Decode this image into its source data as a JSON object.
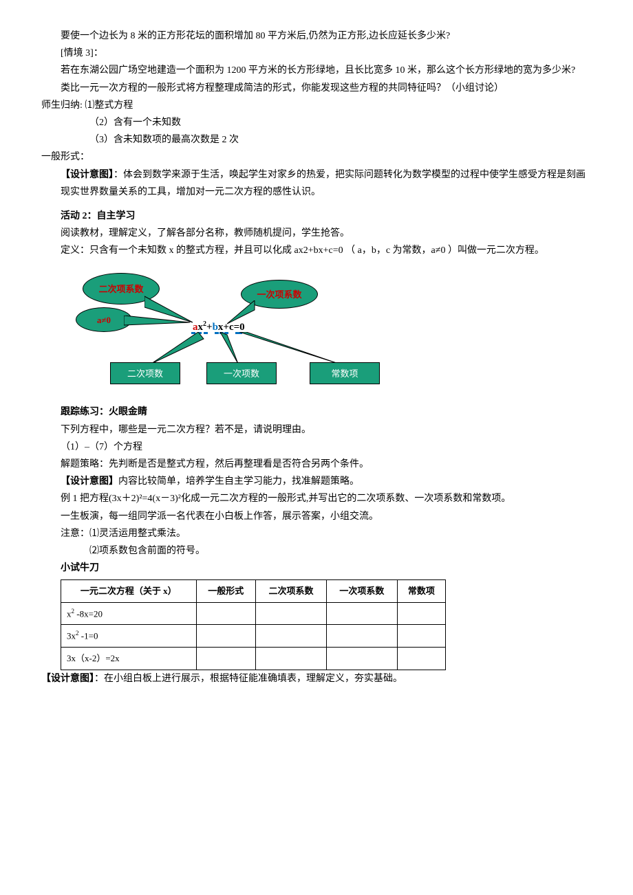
{
  "p1": "要使一个边长为 8 米的正方形花坛的面积增加 80 平方米后,仍然为正方形,边长应延长多少米?",
  "p2": "[情境 3]：",
  "p3": "若在东湖公园广场空地建造一个面积为 1200 平方米的长方形绿地，且长比宽多 10 米，那么这个长方形绿地的宽为多少米?",
  "p4": "类比一元一次方程的一般形式将方程整理成简洁的形式，你能发现这些方程的共同特征吗？（小组讨论）",
  "p5": "师生归纳: ⑴整式方程",
  "p6": "（2）含有一个未知数",
  "p7": "（3）含未知数项的最高次数是 2 次",
  "p8": "一般形式：",
  "design1_label": "【设计意图】",
  "design1_text": "：体会到数学来源于生活，唤起学生对家乡的热爱，把实际问题转化为数学模型的过程中使学生感受方程是刻画现实世界数量关系的工具，增加对一元二次方程的感性认识。",
  "act2_title": "活动 2：自主学习",
  "act2_p1": "阅读教材，理解定义，了解各部分名称，教师随机提问，学生抢答。",
  "act2_p2": "定义：只含有一个未知数 x 的整式方程，并且可以化成 ax2+bx+c=0 （ a，b，c 为常数，a≠0  ）叫做一元二次方程。",
  "diagram": {
    "bubble1": "二次项系数",
    "bubble2": "一次项系数",
    "bubble3": "a≠0",
    "box1": "二次项数",
    "box2": "一次项数",
    "box3": "常数项",
    "formula_html": "<span class='a'>a</span>x<sup>2</sup>+<span class='b'>b</span>x+c=0",
    "colors": {
      "shape_fill": "#1a9e7a",
      "bubble_text": "#c00",
      "box_text": "#ffffff",
      "dash": "#0070c0"
    }
  },
  "follow_title": "跟踪练习：火眼金睛",
  "follow_p1": "下列方程中，哪些是一元二次方程？若不是，请说明理由。",
  "follow_p2": "（1）–（7）个方程",
  "follow_p3": "解题策略：先判断是否是整式方程，然后再整理看是否符合另两个条件。",
  "design2_label": "【设计意图】",
  "design2_text": "内容比较简单，培养学生自主学习能力，找准解题策略。",
  "ex1": "例 1 把方程(3x＋2)²=4(x－3)²化成一元二次方程的一般形式,并写出它的二次项系数、一次项系数和常数项。",
  "ex1_p2": "一生板演，每一组同学派一名代表在小白板上作答，展示答案，小组交流。",
  "ex1_p3": "注意：⑴灵活运用整式乘法。",
  "ex1_p4": "⑵项系数包含前面的符号。",
  "try_title": "小试牛刀",
  "table": {
    "headers": [
      "一元二次方程（关于 x）",
      "一般形式",
      "二次项系数",
      "一次项系数",
      "常数项"
    ],
    "rows": [
      [
        "x² -8x=20",
        "",
        "",
        "",
        ""
      ],
      [
        "3x² -1=0",
        "",
        "",
        "",
        ""
      ],
      [
        "3x（x-2）=2x",
        "",
        "",
        "",
        ""
      ]
    ]
  },
  "design3_label": "【设计意图】",
  "design3_text": "：在小组白板上进行展示，根据特征能准确填表，理解定义，夯实基础。"
}
